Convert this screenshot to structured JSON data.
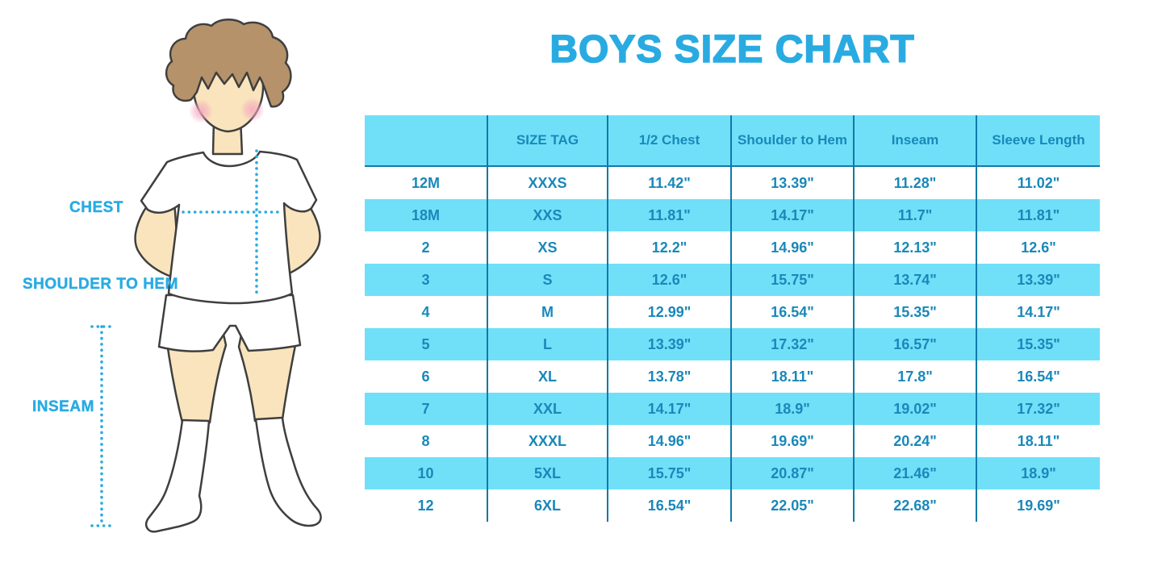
{
  "page_title": "BOYS SIZE CHART",
  "theme": {
    "accent_blue": "#29ABE2",
    "row_highlight": "#6FE0F8",
    "grid_line": "#1279A9",
    "table_text": "#1988BA",
    "skin": "#F9E4BD",
    "hair": "#B5926A",
    "blush": "#F4A7BE",
    "outline": "#3F3F3F"
  },
  "figure": {
    "chest_label": "CHEST",
    "shoulder_to_hem_label": "SHOULDER TO HEM",
    "inseam_label": "INSEAM"
  },
  "chart_data": {
    "type": "table",
    "title": "BOYS SIZE CHART",
    "columns": [
      "",
      "SIZE TAG",
      "1/2 Chest",
      "Shoulder to Hem",
      "Inseam",
      "Sleeve Length"
    ],
    "rows": [
      [
        "12M",
        "XXXS",
        "11.42\"",
        "13.39\"",
        "11.28\"",
        "11.02\""
      ],
      [
        "18M",
        "XXS",
        "11.81\"",
        "14.17\"",
        "11.7\"",
        "11.81\""
      ],
      [
        "2",
        "XS",
        "12.2\"",
        "14.96\"",
        "12.13\"",
        "12.6\""
      ],
      [
        "3",
        "S",
        "12.6\"",
        "15.75\"",
        "13.74\"",
        "13.39\""
      ],
      [
        "4",
        "M",
        "12.99\"",
        "16.54\"",
        "15.35\"",
        "14.17\""
      ],
      [
        "5",
        "L",
        "13.39\"",
        "17.32\"",
        "16.57\"",
        "15.35\""
      ],
      [
        "6",
        "XL",
        "13.78\"",
        "18.11\"",
        "17.8\"",
        "16.54\""
      ],
      [
        "7",
        "XXL",
        "14.17\"",
        "18.9\"",
        "19.02\"",
        "17.32\""
      ],
      [
        "8",
        "XXXL",
        "14.96\"",
        "19.69\"",
        "20.24\"",
        "18.11\""
      ],
      [
        "10",
        "5XL",
        "15.75\"",
        "20.87\"",
        "21.46\"",
        "18.9\""
      ],
      [
        "12",
        "6XL",
        "16.54\"",
        "22.05\"",
        "22.68\"",
        "19.69\""
      ]
    ],
    "highlighted_rows": [
      1,
      3,
      5,
      7,
      9
    ],
    "units": "inches",
    "grid": "column-separators-and-header-underline",
    "legend": "none"
  }
}
